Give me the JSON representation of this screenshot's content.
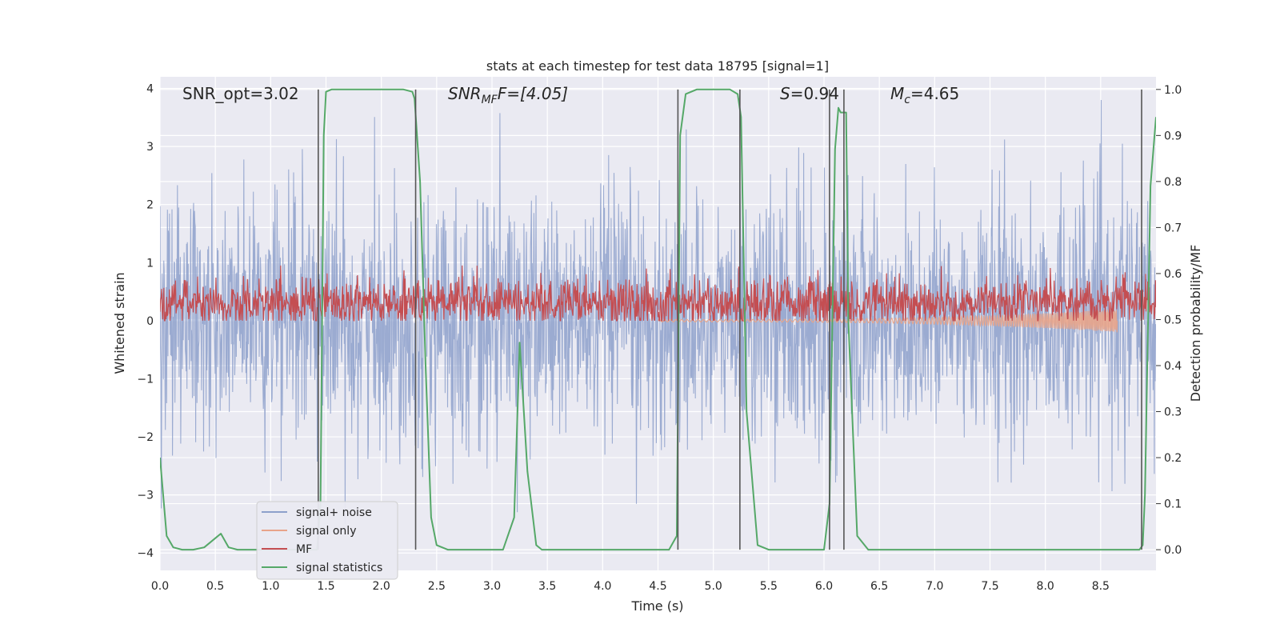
{
  "chart_data": {
    "type": "line",
    "title": "stats at each timestep for test data 18795 [signal=1]",
    "xlabel": "Time (s)",
    "ylabel_left": "Whitened strain",
    "ylabel_right": "Detection probability/MF",
    "xlim": [
      0.0,
      9.0
    ],
    "ylim_left": [
      -4.3,
      4.2
    ],
    "ylim_right": [
      -0.045,
      1.0275
    ],
    "x_ticks": [
      "0.0",
      "0.5",
      "1.0",
      "1.5",
      "2.0",
      "2.5",
      "3.0",
      "3.5",
      "4.0",
      "4.5",
      "5.0",
      "5.5",
      "6.0",
      "6.5",
      "7.0",
      "7.5",
      "8.0",
      "8.5"
    ],
    "y_ticks_left": [
      "−4",
      "−3",
      "−2",
      "−1",
      "0",
      "1",
      "2",
      "3",
      "4"
    ],
    "y_ticks_right": [
      "0.0",
      "0.1",
      "0.2",
      "0.3",
      "0.4",
      "0.5",
      "0.6",
      "0.7",
      "0.8",
      "0.9",
      "1.0"
    ],
    "grid": true,
    "legend_position": "lower-left",
    "annotations": {
      "snr_opt": "SNR_opt=3.02",
      "snr_mf_main": "SNR",
      "snr_mf_sub": "MF",
      "snr_mf_rest": "F=[4.05]",
      "s_main": "S",
      "s_rest": "=0.94",
      "mc_main": "M",
      "mc_sub": "c",
      "mc_rest": "=4.65"
    },
    "series": [
      {
        "name": "signal+ noise",
        "color": "#8da0cb",
        "axis": "left",
        "kind": "noise",
        "amplitude_range": [
          -3.5,
          3.8
        ]
      },
      {
        "name": "signal only",
        "color": "#e8a48a",
        "axis": "left",
        "kind": "chirp",
        "x_range": [
          4.5,
          8.65
        ]
      },
      {
        "name": "MF",
        "color": "#c44e52",
        "axis": "left",
        "kind": "band",
        "y_range": [
          0.0,
          0.95
        ]
      },
      {
        "name": "signal statistics",
        "color": "#55a868",
        "axis": "right",
        "x": [
          0.0,
          0.06,
          0.12,
          0.2,
          0.3,
          0.4,
          0.5,
          0.55,
          0.62,
          0.7,
          0.8,
          0.9,
          1.0,
          1.1,
          1.2,
          1.3,
          1.4,
          1.42,
          1.45,
          1.48,
          1.5,
          1.55,
          1.6,
          1.8,
          2.0,
          2.2,
          2.28,
          2.3,
          2.35,
          2.4,
          2.45,
          2.5,
          2.6,
          2.8,
          3.0,
          3.1,
          3.2,
          3.25,
          3.32,
          3.4,
          3.45,
          3.5,
          4.0,
          4.5,
          4.6,
          4.67,
          4.7,
          4.75,
          4.85,
          5.0,
          5.15,
          5.22,
          5.25,
          5.3,
          5.4,
          5.5,
          5.6,
          6.0,
          6.05,
          6.1,
          6.13,
          6.15,
          6.2,
          6.22,
          6.3,
          6.4,
          7.0,
          7.5,
          8.0,
          8.5,
          8.85,
          8.88,
          8.9,
          8.95,
          9.0
        ],
        "values": [
          0.2,
          0.03,
          0.005,
          0.0,
          0.0,
          0.005,
          0.025,
          0.035,
          0.005,
          0.0,
          0.0,
          0.0,
          0.0,
          0.0,
          0.0,
          0.0,
          0.0,
          0.0,
          0.1,
          0.9,
          0.995,
          1.0,
          1.0,
          1.0,
          1.0,
          1.0,
          0.995,
          0.98,
          0.8,
          0.4,
          0.07,
          0.01,
          0.0,
          0.0,
          0.0,
          0.0,
          0.07,
          0.45,
          0.17,
          0.01,
          0.0,
          0.0,
          0.0,
          0.0,
          0.0,
          0.03,
          0.9,
          0.99,
          1.0,
          1.0,
          1.0,
          0.99,
          0.94,
          0.3,
          0.01,
          0.0,
          0.0,
          0.0,
          0.1,
          0.87,
          0.96,
          0.95,
          0.95,
          0.5,
          0.03,
          0.0,
          0.0,
          0.0,
          0.0,
          0.0,
          0.0,
          0.01,
          0.12,
          0.79,
          0.94
        ]
      }
    ],
    "vertical_lines": [
      1.43,
      2.31,
      4.68,
      5.24,
      6.05,
      6.18,
      8.87
    ]
  }
}
